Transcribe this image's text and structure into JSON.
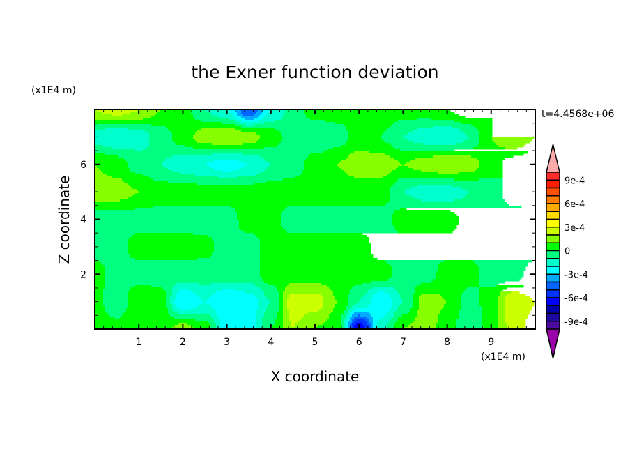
{
  "chart_data": {
    "type": "heatmap",
    "title": "the Exner function deviation",
    "xlabel": "X coordinate",
    "ylabel": "Z coordinate",
    "x_unit_label": "(x1E4 m)",
    "y_unit_label": "(x1E4 m)",
    "time_label": "t=4.4568e+06",
    "xlim": [
      0,
      10
    ],
    "ylim": [
      0,
      8
    ],
    "x_ticks": [
      "1",
      "2",
      "3",
      "4",
      "5",
      "6",
      "7",
      "8",
      "9"
    ],
    "y_ticks": [
      "2",
      "4",
      "6"
    ],
    "value_scale": 0.0001,
    "grid_x": [
      0,
      0.5,
      1,
      1.5,
      2,
      2.5,
      3,
      3.5,
      4,
      4.5,
      5,
      5.5,
      6,
      6.5,
      7,
      7.5,
      8,
      8.5,
      9,
      9.5,
      10
    ],
    "grid_z": [
      8,
      7,
      6,
      5,
      4,
      3,
      2,
      1,
      0
    ],
    "values_x1e-4": [
      [
        2,
        2.5,
        2,
        1,
        0.5,
        -1,
        -2,
        -5,
        -2,
        -0.5,
        0.5,
        0.5,
        0.5,
        1,
        0.5,
        0.5,
        1,
        1.5,
        1,
        1,
        1
      ],
      [
        -1.5,
        -2,
        -1.5,
        -0.5,
        0.5,
        1.5,
        2,
        1.5,
        0.5,
        -0.5,
        -1,
        -0.5,
        0.5,
        0,
        -1,
        -1.5,
        -2,
        -1,
        1,
        2,
        1
      ],
      [
        1,
        0.5,
        -0.5,
        -1,
        -1.5,
        -2,
        -2.5,
        -2,
        -1,
        -0.5,
        0.5,
        1,
        1.5,
        1.5,
        1,
        1.5,
        2,
        1.5,
        0.5,
        -0.5,
        -1
      ],
      [
        1.5,
        1.5,
        1,
        0.5,
        0.5,
        0.5,
        0.5,
        0.5,
        0.5,
        0.5,
        0.5,
        0.5,
        0.5,
        0.5,
        -1,
        -1.5,
        -1.5,
        -1,
        -0.5,
        0.5,
        1
      ],
      [
        -0.5,
        -0.5,
        -0.5,
        -0.5,
        -0.5,
        -0.5,
        -0.5,
        0.5,
        0.3,
        -0.5,
        -0.5,
        -0.5,
        -0.5,
        -0.5,
        0.5,
        0.5,
        0.5,
        -0.5,
        -0.5,
        -0.5,
        -0.5
      ],
      [
        -0.5,
        -0.5,
        0.5,
        0.5,
        0.5,
        0.3,
        -0.5,
        -0.5,
        0.5,
        0.5,
        0.5,
        0.5,
        0.5,
        -0.5,
        -0.5,
        -0.5,
        -0.5,
        -0.5,
        -0.5,
        -0.5,
        -0.5
      ],
      [
        0.5,
        -0.5,
        -0.5,
        -0.5,
        -0.5,
        -0.5,
        -0.5,
        -0.5,
        0.5,
        0.5,
        0.5,
        0.5,
        0.5,
        0.5,
        -0.5,
        -0.5,
        0.5,
        0.5,
        -0.5,
        -0.5,
        0.5
      ],
      [
        0.5,
        -1,
        1,
        0.5,
        -3,
        -2,
        -3,
        -2.5,
        -1,
        2.5,
        2.5,
        1,
        -1,
        -3,
        -1,
        1.5,
        1,
        -0.5,
        0.5,
        3,
        2
      ],
      [
        1,
        0.5,
        1,
        0.5,
        1.5,
        0.5,
        -2.5,
        -2.5,
        0,
        2,
        1,
        0.5,
        -7,
        -1.5,
        1,
        1.5,
        0.5,
        -1,
        0.5,
        2.5,
        1.5
      ]
    ],
    "colorbar": {
      "labels": [
        "9e-4",
        "6e-4",
        "3e-4",
        "0",
        "-3e-4",
        "-6e-4",
        "-9e-4"
      ],
      "levels_x1e-4": [
        10,
        9,
        8,
        7,
        6,
        5,
        4,
        3,
        2,
        1,
        0,
        -1,
        -2,
        -3,
        -4,
        -5,
        -6,
        -7,
        -8,
        -9,
        -10
      ],
      "colors": [
        "#ff2a2a",
        "#ff1e00",
        "#ff5000",
        "#ff7c00",
        "#ffaa00",
        "#ffdc00",
        "#ffff00",
        "#ccff00",
        "#88ff00",
        "#00ff00",
        "#00ff80",
        "#00ffcc",
        "#00ffff",
        "#00aaff",
        "#0066ff",
        "#0033ff",
        "#0000ff",
        "#0000aa",
        "#1e0aa0",
        "#4b0aa0"
      ],
      "over_color": "#ffaaaa",
      "under_color": "#9900aa"
    }
  }
}
